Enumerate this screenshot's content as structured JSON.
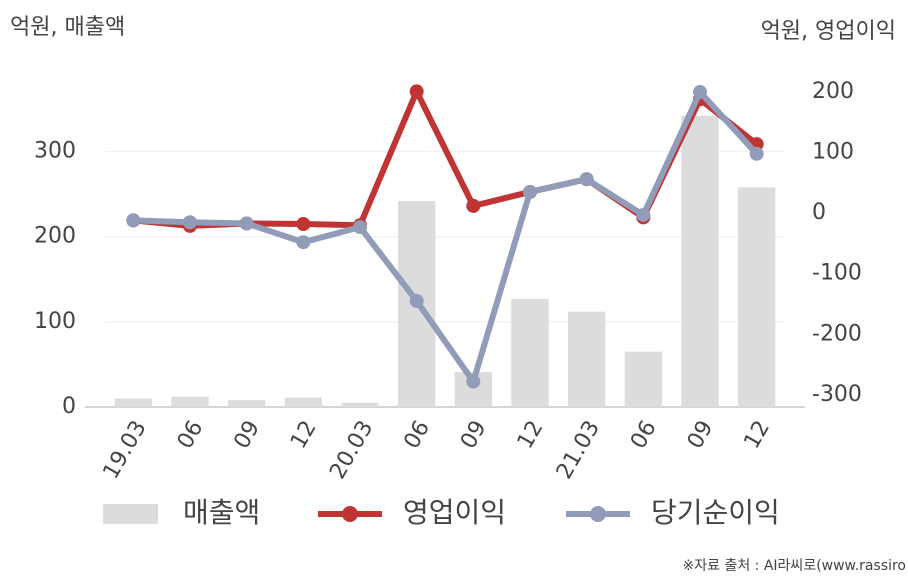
{
  "chart_data": {
    "type": "combo",
    "y_axis_label": "억원, 매출액",
    "y2_axis_label": "억원, 영업이익",
    "source": "※자료 출처 : AI라씨로(www.rassiro",
    "categories": [
      "19.03",
      "06",
      "09",
      "12",
      "20.03",
      "06",
      "09",
      "12",
      "21.03",
      "06",
      "09",
      "12"
    ],
    "series": [
      {
        "name": "매출액",
        "kind": "bar",
        "color": "#dcdcdc",
        "values": [
          10,
          12,
          8,
          11,
          5,
          242,
          41,
          127,
          112,
          65,
          342,
          258
        ]
      },
      {
        "name": "영업이익",
        "kind": "line",
        "axis": "y2",
        "color": "#c03434",
        "values": [
          -12,
          -21,
          -17,
          -18,
          -20,
          201,
          12,
          35,
          56,
          -7,
          188,
          114
        ]
      },
      {
        "name": "당기순이익",
        "kind": "line",
        "axis": "y2",
        "color": "#909cb8",
        "values": [
          -12,
          -15,
          -17,
          -48,
          -23,
          -145,
          -278,
          35,
          56,
          -3,
          200,
          98
        ]
      }
    ],
    "ylim": [
      0,
      370
    ],
    "yticks": [
      0,
      100,
      200,
      300
    ],
    "y2lim": [
      -320,
      200
    ],
    "y2ticks": [
      -300,
      -200,
      -100,
      0,
      100,
      200
    ],
    "grid": true
  }
}
